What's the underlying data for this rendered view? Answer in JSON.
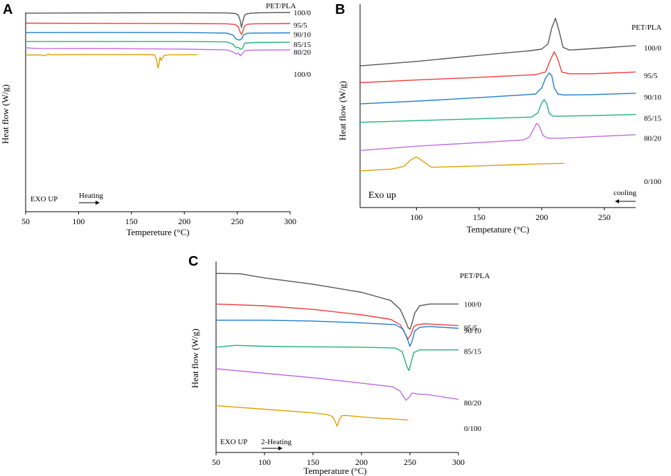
{
  "chart_data": [
    {
      "panel": "A",
      "type": "line",
      "title": "",
      "xlabel": "Tempereture (°C)",
      "ylabel": "Heat flow (W/g)",
      "xlim": [
        50,
        300
      ],
      "xticks": [
        50,
        100,
        150,
        200,
        250,
        300
      ],
      "legend_title": "PET/PLA",
      "mode_note": "EXO UP",
      "direction_note": "Heating",
      "series": [
        {
          "name": "100/0",
          "color": "#555555",
          "x": [
            50,
            100,
            150,
            200,
            240,
            248,
            251,
            253,
            254,
            255,
            257,
            259,
            263,
            270,
            300
          ],
          "y": [
            99.4,
            99.6,
            99.7,
            99.8,
            99.6,
            99.2,
            98.0,
            93.0,
            88.0,
            92.0,
            97.8,
            98.9,
            99.4,
            99.7,
            100.0
          ]
        },
        {
          "name": "95/5",
          "color": "#ef3b3b",
          "x": [
            50,
            100,
            150,
            200,
            240,
            248,
            251,
            253,
            254,
            255,
            257,
            260,
            265,
            300
          ],
          "y": [
            91.5,
            91.4,
            91.3,
            91.2,
            91.0,
            90.5,
            88.5,
            84.0,
            82.5,
            84.0,
            89.5,
            90.6,
            91.0,
            91.2
          ]
        },
        {
          "name": "90/10",
          "color": "#1f7acc",
          "x": [
            50,
            100,
            150,
            200,
            240,
            246,
            249,
            252,
            254,
            256,
            259,
            265,
            300
          ],
          "y": [
            84.0,
            84.1,
            84.1,
            84.0,
            83.6,
            82.0,
            78.8,
            78.0,
            78.8,
            82.2,
            83.4,
            83.6,
            83.8
          ]
        },
        {
          "name": "85/15",
          "color": "#22b07a",
          "x": [
            50,
            100,
            150,
            200,
            240,
            246,
            249,
            251,
            253,
            255,
            257,
            265,
            300
          ],
          "y": [
            77.0,
            77.0,
            77.0,
            77.0,
            76.6,
            74.8,
            72.0,
            72.4,
            70.6,
            71.5,
            75.6,
            76.1,
            76.3
          ]
        },
        {
          "name": "80/20",
          "color": "#c06be0",
          "x": [
            50,
            60,
            100,
            150,
            200,
            240,
            246,
            249,
            251,
            253,
            255,
            257,
            262,
            300
          ],
          "y": [
            72.0,
            71.4,
            71.3,
            71.2,
            70.9,
            70.3,
            68.6,
            67.0,
            67.8,
            65.6,
            67.5,
            69.6,
            70.1,
            70.3
          ]
        },
        {
          "name": "100/0",
          "color": "#e0a000",
          "x": [
            50,
            65,
            68,
            70,
            72,
            74,
            80,
            100,
            150,
            160,
            168,
            172,
            174,
            175,
            176,
            177,
            178,
            179,
            181,
            186,
            200,
            212
          ],
          "y": [
            66.2,
            66.2,
            65.6,
            66.4,
            67.0,
            66.4,
            66.5,
            66.6,
            66.6,
            66.6,
            66.5,
            66.2,
            62.0,
            56.0,
            58.5,
            64.5,
            62.0,
            63.5,
            65.8,
            66.4,
            66.4,
            66.5
          ]
        }
      ]
    },
    {
      "panel": "B",
      "type": "line",
      "title": "",
      "xlabel": "Tempetature (°C)",
      "ylabel": "Heat flow (W/g)",
      "xlim": [
        55,
        275
      ],
      "xticks": [
        100,
        150,
        200,
        250
      ],
      "legend_title": "PET/PLA",
      "mode_note": "Exo up",
      "direction_note": "cooling",
      "series": [
        {
          "name": "100/0",
          "color": "#555555",
          "x": [
            55,
            100,
            150,
            190,
            200,
            205,
            208,
            211,
            214,
            217,
            222,
            235,
            275
          ],
          "y": [
            70.5,
            73.0,
            76.5,
            79.0,
            80.0,
            83.0,
            92.0,
            97.5,
            90.0,
            81.0,
            79.5,
            80.0,
            82.0
          ]
        },
        {
          "name": "95/5",
          "color": "#ef3b3b",
          "x": [
            55,
            100,
            150,
            195,
            203,
            207,
            210,
            213,
            216,
            222,
            240,
            275
          ],
          "y": [
            61.0,
            62.5,
            64.0,
            65.5,
            67.0,
            74.0,
            78.5,
            74.0,
            67.0,
            66.0,
            66.0,
            67.0
          ]
        },
        {
          "name": "90/10",
          "color": "#1f7acc",
          "x": [
            55,
            100,
            150,
            195,
            200,
            203,
            206,
            208,
            210,
            213,
            218,
            240,
            275
          ],
          "y": [
            49.0,
            50.5,
            52.5,
            54.5,
            58.0,
            63.5,
            66.5,
            65.0,
            58.0,
            54.5,
            54.0,
            54.2,
            55.0
          ]
        },
        {
          "name": "85/15",
          "color": "#22b07a",
          "x": [
            55,
            100,
            150,
            192,
            197,
            200,
            202,
            204,
            206,
            209,
            214,
            240,
            275
          ],
          "y": [
            38.5,
            39.5,
            40.5,
            41.5,
            44.0,
            49.5,
            51.5,
            49.0,
            43.5,
            42.0,
            42.0,
            42.3,
            43.0
          ]
        },
        {
          "name": "80/20",
          "color": "#c06be0",
          "x": [
            55,
            100,
            150,
            185,
            190,
            193,
            196,
            198,
            201,
            205,
            215,
            245,
            275
          ],
          "y": [
            22.5,
            25.0,
            27.0,
            28.5,
            30.0,
            34.0,
            38.0,
            36.5,
            31.0,
            29.5,
            29.5,
            30.5,
            31.5
          ]
        },
        {
          "name": "0/100",
          "color": "#e0a000",
          "x": [
            55,
            80,
            90,
            95,
            100,
            105,
            112,
            125,
            150,
            180,
            200,
            218
          ],
          "y": [
            11.0,
            12.0,
            13.5,
            17.0,
            19.0,
            16.5,
            13.0,
            13.3,
            13.8,
            14.5,
            15.0,
            15.2
          ]
        }
      ]
    },
    {
      "panel": "C",
      "type": "line",
      "title": "",
      "xlabel": "Temperature (°C)",
      "ylabel": "Heat flow (W/g)",
      "xlim": [
        50,
        300
      ],
      "xticks": [
        50,
        100,
        150,
        200,
        250,
        300
      ],
      "legend_title": "PET/PLA",
      "mode_note": "EXO UP",
      "direction_note": "2-Heating",
      "series": [
        {
          "name": "100/0",
          "color": "#555555",
          "x": [
            50,
            75,
            100,
            150,
            200,
            230,
            240,
            245,
            248,
            250,
            252,
            255,
            260,
            270,
            300
          ],
          "y": [
            98.0,
            97.8,
            95.5,
            92.0,
            87.5,
            83.0,
            78.0,
            72.0,
            68.0,
            67.0,
            70.0,
            76.0,
            80.0,
            81.0,
            81.0
          ]
        },
        {
          "name": "95/5",
          "color": "#ef3b3b",
          "x": [
            50,
            100,
            150,
            200,
            230,
            240,
            245,
            248,
            251,
            254,
            258,
            265,
            300
          ],
          "y": [
            81.0,
            80.0,
            78.0,
            75.0,
            72.5,
            69.5,
            64.5,
            61.5,
            64.0,
            68.5,
            69.5,
            70.0,
            69.0
          ]
        },
        {
          "name": "90/10",
          "color": "#1f7acc",
          "x": [
            50,
            100,
            150,
            200,
            235,
            243,
            247,
            250,
            252,
            255,
            260,
            270,
            300
          ],
          "y": [
            72.0,
            72.0,
            71.5,
            70.5,
            69.5,
            67.0,
            62.0,
            57.5,
            60.0,
            66.0,
            68.0,
            68.5,
            67.5
          ]
        },
        {
          "name": "85/15",
          "color": "#22b07a",
          "x": [
            50,
            70,
            100,
            150,
            200,
            235,
            242,
            245,
            247,
            249,
            251,
            254,
            260,
            300
          ],
          "y": [
            57.0,
            58.0,
            57.5,
            57.2,
            57.0,
            56.5,
            54.5,
            49.5,
            46.0,
            44.0,
            48.0,
            54.0,
            55.5,
            55.5
          ]
        },
        {
          "name": "80/20",
          "color": "#c06be0",
          "x": [
            50,
            100,
            150,
            200,
            232,
            240,
            244,
            246,
            248,
            250,
            252,
            258,
            270,
            300
          ],
          "y": [
            45.0,
            42.5,
            40.0,
            37.0,
            35.0,
            32.5,
            29.0,
            27.5,
            28.5,
            29.5,
            31.5,
            31.0,
            30.5,
            28.0
          ]
        },
        {
          "name": "0/100",
          "color": "#e0a000",
          "x": [
            50,
            100,
            150,
            165,
            170,
            173,
            175,
            177,
            180,
            185,
            200,
            248
          ],
          "y": [
            24.5,
            22.5,
            20.5,
            19.5,
            18.5,
            15.5,
            13.0,
            16.5,
            19.0,
            19.0,
            18.2,
            16.5
          ]
        }
      ]
    }
  ]
}
